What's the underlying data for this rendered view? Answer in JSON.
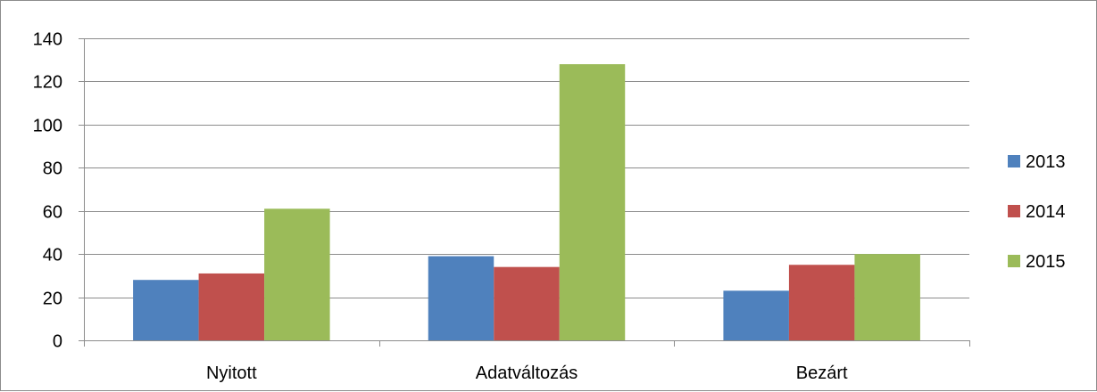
{
  "chart_data": {
    "type": "bar",
    "categories": [
      "Nyitott",
      "Adatváltozás",
      "Bezárt"
    ],
    "series": [
      {
        "name": "2013",
        "color": "#4f81bd",
        "values": [
          28,
          39,
          23
        ]
      },
      {
        "name": "2014",
        "color": "#c0504d",
        "values": [
          31,
          34,
          35
        ]
      },
      {
        "name": "2015",
        "color": "#9bbb59",
        "values": [
          61,
          128,
          40
        ]
      }
    ],
    "ylim": [
      0,
      140
    ],
    "yticks": [
      0,
      20,
      40,
      60,
      80,
      100,
      120,
      140
    ],
    "grid": true,
    "legend_position": "right"
  }
}
